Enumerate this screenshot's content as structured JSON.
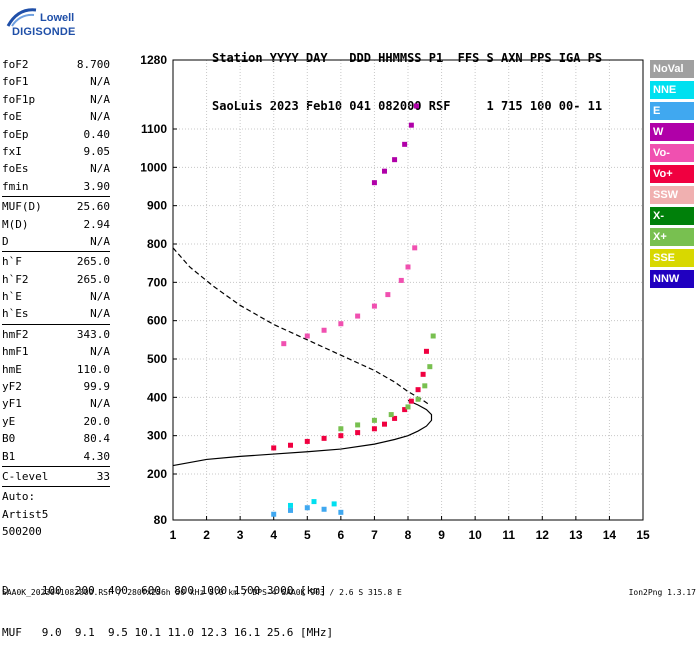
{
  "logo": {
    "line1": "Lowell",
    "line2": "DIGISONDE"
  },
  "header": {
    "line1": "Station YYYY DAY   DDD HHMMSS P1  FFS S AXN PPS IGA PS",
    "line2": "SaoLuis 2023 Feb10 041 082000 RSF     1 715 100 00- 11"
  },
  "params": {
    "groups": [
      [
        [
          "foF2",
          "8.700"
        ],
        [
          "foF1",
          "N/A"
        ],
        [
          "foF1p",
          "N/A"
        ],
        [
          "foE",
          "N/A"
        ],
        [
          "foEp",
          "0.40"
        ],
        [
          "fxI",
          "9.05"
        ],
        [
          "foEs",
          "N/A"
        ],
        [
          "fmin",
          "3.90"
        ]
      ],
      [
        [
          "MUF(D)",
          "25.60"
        ],
        [
          "M(D)",
          "2.94"
        ],
        [
          "D",
          "N/A"
        ]
      ],
      [
        [
          "h`F",
          "265.0"
        ],
        [
          "h`F2",
          "265.0"
        ],
        [
          "h`E",
          "N/A"
        ],
        [
          "h`Es",
          "N/A"
        ]
      ],
      [
        [
          "hmF2",
          "343.0"
        ],
        [
          "hmF1",
          "N/A"
        ],
        [
          "hmE",
          "110.0"
        ],
        [
          "yF2",
          "99.9"
        ],
        [
          "yF1",
          "N/A"
        ],
        [
          "yE",
          "20.0"
        ],
        [
          "B0",
          "80.4"
        ],
        [
          "B1",
          "4.30"
        ]
      ],
      [
        [
          "C-level",
          "33"
        ]
      ]
    ],
    "auto": [
      "Auto:",
      "Artist5",
      "500200"
    ]
  },
  "muf_table": {
    "line1": "D     100  200  400  600  800 1000 1500 3000 [km]",
    "line2": "MUF   9.0  9.1  9.5 10.1 11.0 12.3 16.1 25.6 [MHz]"
  },
  "footer": {
    "left": "SAA0K_2023041082000.RSF / 280fx256h 50 kHz 5.0 km / DPS-4 SAA0K 903 / 2.6 S 315.8 E",
    "right": "Ion2Png 1.3.17"
  },
  "legend": [
    {
      "label": "NoVal",
      "color": "#a0a0a0"
    },
    {
      "label": "NNE",
      "color": "#00e0f0"
    },
    {
      "label": "E",
      "color": "#40a8f0"
    },
    {
      "label": "W",
      "color": "#b000a8"
    },
    {
      "label": "Vo-",
      "color": "#f050b0"
    },
    {
      "label": "Vo+",
      "color": "#f00040"
    },
    {
      "label": "SSW",
      "color": "#f0b0b0"
    },
    {
      "label": "X-",
      "color": "#00800a"
    },
    {
      "label": "X+",
      "color": "#78c050"
    },
    {
      "label": "SSE",
      "color": "#d8d800"
    },
    {
      "label": "NNW",
      "color": "#2000c0"
    }
  ],
  "chart_data": {
    "type": "scatter",
    "xlim": [
      1,
      15
    ],
    "ylim": [
      80,
      1280
    ],
    "x_ticks": [
      1,
      2,
      3,
      4,
      5,
      6,
      7,
      8,
      9,
      10,
      11,
      12,
      13,
      14,
      15
    ],
    "y_ticks": [
      80,
      200,
      300,
      400,
      500,
      600,
      700,
      800,
      900,
      1000,
      1100,
      1280
    ],
    "grid": true,
    "series": [
      {
        "name": "Vo+",
        "x": [
          4.0,
          4.5,
          5.0,
          5.5,
          6.0,
          6.5,
          7.0,
          7.3,
          7.6,
          7.9,
          8.1,
          8.3,
          8.45,
          8.55
        ],
        "y": [
          268,
          275,
          285,
          293,
          300,
          308,
          318,
          330,
          345,
          368,
          390,
          420,
          460,
          520
        ]
      },
      {
        "name": "X+",
        "x": [
          6.0,
          6.5,
          7.0,
          7.5,
          8.0,
          8.3,
          8.5,
          8.65,
          8.75
        ],
        "y": [
          318,
          328,
          340,
          355,
          375,
          395,
          430,
          480,
          560
        ]
      },
      {
        "name": "Vo-",
        "x": [
          4.3,
          5.0,
          5.5,
          6.0,
          6.5,
          7.0,
          7.4,
          7.8,
          8.0,
          8.2
        ],
        "y": [
          540,
          560,
          575,
          592,
          612,
          638,
          668,
          705,
          740,
          790
        ]
      },
      {
        "name": "W",
        "x": [
          7.0,
          7.3,
          7.6,
          7.9,
          8.1,
          8.25
        ],
        "y": [
          960,
          990,
          1020,
          1060,
          1110,
          1160
        ]
      },
      {
        "name": "E",
        "x": [
          4.0,
          4.5,
          5.0,
          5.5,
          6.0
        ],
        "y": [
          95,
          105,
          112,
          108,
          100
        ]
      },
      {
        "name": "NNE",
        "x": [
          4.5,
          5.2,
          5.8
        ],
        "y": [
          118,
          128,
          122
        ]
      }
    ],
    "curves": [
      {
        "name": "profile",
        "style": "solid",
        "x": [
          1.0,
          2.0,
          3.0,
          4.0,
          5.0,
          6.0,
          7.0,
          7.6,
          8.0,
          8.3,
          8.55,
          8.7,
          8.7,
          8.55,
          8.3,
          8.0
        ],
        "y": [
          222,
          238,
          246,
          252,
          258,
          265,
          278,
          290,
          300,
          312,
          325,
          340,
          355,
          368,
          380,
          392
        ]
      },
      {
        "name": "topside",
        "style": "dashed",
        "x": [
          1.0,
          1.5,
          2.2,
          3.0,
          4.0,
          5.0,
          6.0,
          7.0,
          7.6,
          8.0,
          8.4,
          8.65
        ],
        "y": [
          790,
          740,
          690,
          640,
          590,
          550,
          510,
          470,
          440,
          415,
          395,
          380
        ]
      }
    ]
  }
}
